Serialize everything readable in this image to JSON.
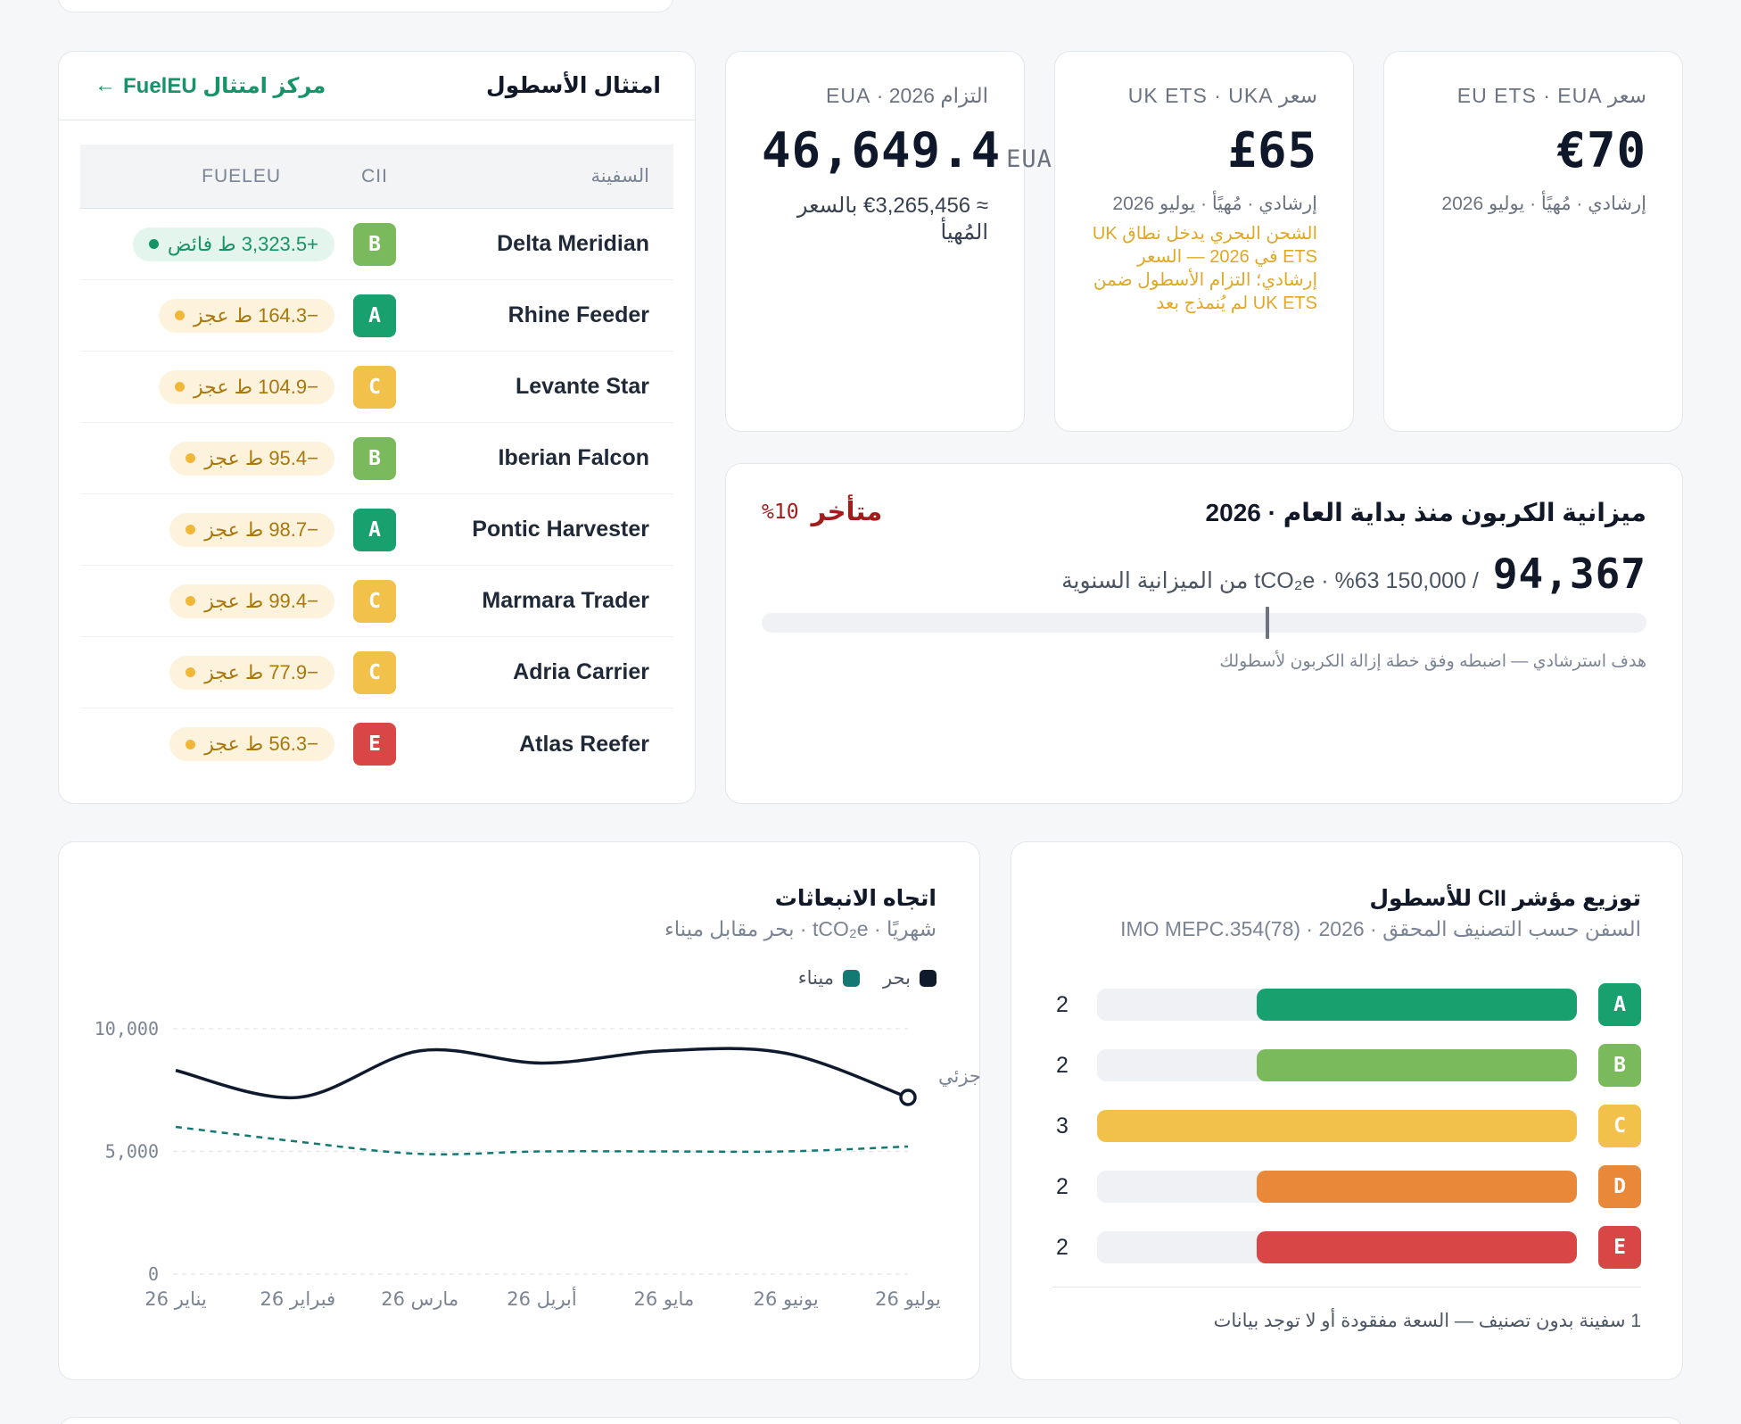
{
  "kpis": [
    {
      "label": "سعر EU ETS · EUA",
      "value": "€70",
      "unit": "",
      "sub": "إرشادي · مُهيًأ · يوليو 2026"
    },
    {
      "label": "سعر UK ETS · UKA",
      "value": "£65",
      "unit": "",
      "sub": "إرشادي · مُهيًأ · يوليو 2026",
      "warning": "الشحن البحري يدخل نطاق UK ETS في 2026 — السعر إرشادي؛ التزام الأسطول ضمن UK ETS لم يُنمذج بعد"
    },
    {
      "label": "التزام 2026 · EUA",
      "value": "46,649.4",
      "unit": "EUA",
      "sub": "≈ €3,265,456 بالسعر المُهيأ"
    }
  ],
  "fleet": {
    "title": "امتثال الأسطول",
    "link": "مركز امتثال FuelEU",
    "link_arrow": "←",
    "headers": {
      "vessel": "السفينة",
      "cii": "CII",
      "fueleu": "FUELEU"
    },
    "rows": [
      {
        "name": "Delta Meridian",
        "cii": "B",
        "fueleu": "+3,323.5 ط فائض",
        "status": "surplus"
      },
      {
        "name": "Rhine Feeder",
        "cii": "A",
        "fueleu": "−164.3 ط عجز",
        "status": "deficit"
      },
      {
        "name": "Levante Star",
        "cii": "C",
        "fueleu": "−104.9 ط عجز",
        "status": "deficit"
      },
      {
        "name": "Iberian Falcon",
        "cii": "B",
        "fueleu": "−95.4 ط عجز",
        "status": "deficit"
      },
      {
        "name": "Pontic Harvester",
        "cii": "A",
        "fueleu": "−98.7 ط عجز",
        "status": "deficit"
      },
      {
        "name": "Marmara Trader",
        "cii": "C",
        "fueleu": "−99.4 ط عجز",
        "status": "deficit"
      },
      {
        "name": "Adria Carrier",
        "cii": "C",
        "fueleu": "−77.9 ط عجز",
        "status": "deficit"
      },
      {
        "name": "Atlas Reefer",
        "cii": "E",
        "fueleu": "−56.3 ط عجز",
        "status": "deficit"
      }
    ]
  },
  "grade_colors": {
    "A": "#18a06f",
    "B": "#7aba5c",
    "C": "#f2c14a",
    "D": "#e98838",
    "E": "#d94646"
  },
  "budget": {
    "title": "ميزانية الكربون منذ بداية العام · 2026",
    "status": "متأخر",
    "status_pct": "%10",
    "used": "94,367",
    "of_text": "/ 150,000 tCO₂e · %63 من الميزانية السنوية",
    "progress": 0.63,
    "target_marker": 0.57,
    "note": "هدف استرشادي — اضبطه وفق خطة إزالة الكربون لأسطولك"
  },
  "trend": {
    "title": "اتجاه الانبعاثات",
    "subtitle": "شهريًا · tCO₂e · بحر مقابل ميناء",
    "partial_label": "جزئي"
  },
  "cii_dist": {
    "title": "توزيع مؤشر CII للأسطول",
    "subtitle": "السفن حسب التصنيف المحقق · 2026 · IMO MEPC.354(78)",
    "footnote": "1 سفينة بدون تصنيف — السعة مفقودة أو لا توجد بيانات",
    "rows": [
      {
        "grade": "A",
        "count": 2,
        "fraction": 0.667
      },
      {
        "grade": "B",
        "count": 2,
        "fraction": 0.667
      },
      {
        "grade": "C",
        "count": 3,
        "fraction": 1.0
      },
      {
        "grade": "D",
        "count": 2,
        "fraction": 0.667
      },
      {
        "grade": "E",
        "count": 2,
        "fraction": 0.667
      }
    ]
  },
  "chart_data": {
    "type": "line",
    "title": "اتجاه الانبعاثات",
    "subtitle": "شهريًا · tCO₂e · بحر مقابل ميناء",
    "categories": [
      "يناير 26",
      "فبراير 26",
      "مارس 26",
      "أبريل 26",
      "مايو 26",
      "يونيو 26",
      "يوليو 26"
    ],
    "series": [
      {
        "name": "بحر",
        "color": "#0f1b2d",
        "style": "solid",
        "values": [
          8300,
          7200,
          9100,
          8600,
          9100,
          9000,
          7200
        ]
      },
      {
        "name": "ميناء",
        "color": "#127a72",
        "style": "dashed",
        "values": [
          6000,
          5400,
          4900,
          5000,
          5000,
          5000,
          5200
        ]
      }
    ],
    "yticks": [
      "0",
      "5,000",
      "10,000"
    ],
    "ylim": [
      0,
      10000
    ],
    "grid": true,
    "legend": "top-right",
    "last_point_label": "جزئي"
  }
}
